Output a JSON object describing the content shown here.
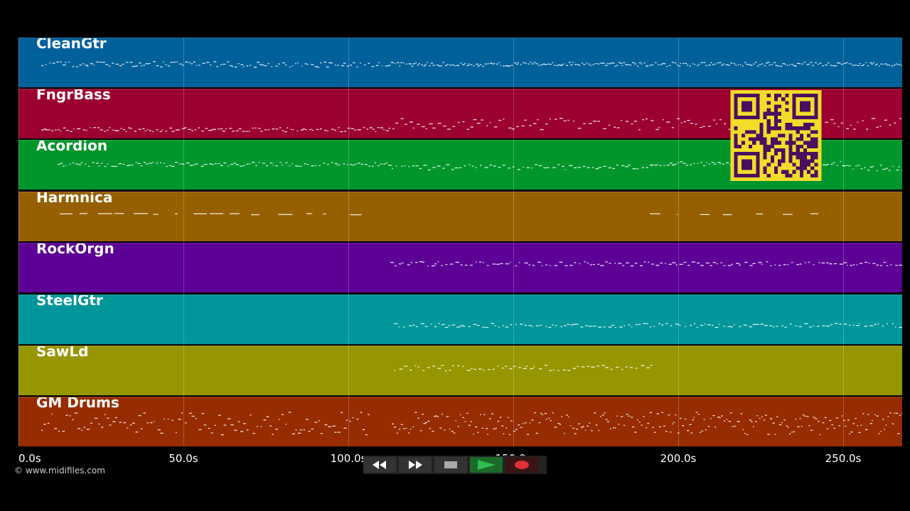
{
  "tracks": [
    {
      "name": "CleanGtr",
      "color": "#00609a"
    },
    {
      "name": "FngrBass",
      "color": "#9b0031"
    },
    {
      "name": "Acordion",
      "color": "#00962c"
    },
    {
      "name": "Harmnica",
      "color": "#966000"
    },
    {
      "name": "RockOrgn",
      "color": "#5c0096"
    },
    {
      "name": "SteelGtr",
      "color": "#00969a"
    },
    {
      "name": "SawLd",
      "color": "#969600"
    },
    {
      "name": "GM Drums",
      "color": "#962c00"
    }
  ],
  "timeline": {
    "ticks": [
      "0.0s",
      "50.0s",
      "100.0s",
      "150.0s",
      "200.0s",
      "250.0s"
    ]
  },
  "footer": {
    "copyright": "© www.midifiles.com"
  },
  "transport": {
    "rewind_icon": "rewind-icon",
    "fast_forward_icon": "fast-forward-icon",
    "stop_icon": "stop-icon",
    "play_icon": "play-icon",
    "record_icon": "record-icon",
    "play_color": "#2dbd4e",
    "record_color": "#e0303a"
  },
  "overlay": {
    "qr_colors": {
      "fg": "#4a1060",
      "bg": "#f3dc2a"
    }
  }
}
